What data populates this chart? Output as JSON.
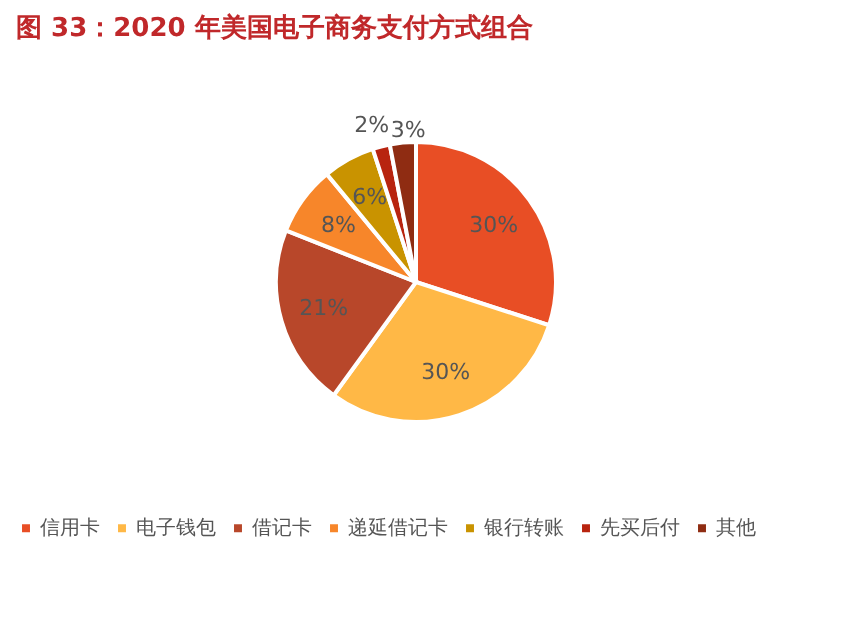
{
  "chart_data": {
    "type": "pie",
    "title": "图 33：2020 年美国电子商务支付方式组合",
    "categories": [
      "信用卡",
      "电子钱包",
      "借记卡",
      "递延借记卡",
      "银行转账",
      "先买后付",
      "其他"
    ],
    "values": [
      30,
      30,
      21,
      8,
      6,
      2,
      3
    ],
    "value_labels": [
      "30%",
      "30%",
      "21%",
      "8%",
      "6%",
      "2%",
      "3%"
    ],
    "colors": [
      "#e84e25",
      "#ffb846",
      "#b8472a",
      "#f7862a",
      "#c99300",
      "#b8240f",
      "#8f2c12"
    ],
    "legend": "bottom"
  }
}
